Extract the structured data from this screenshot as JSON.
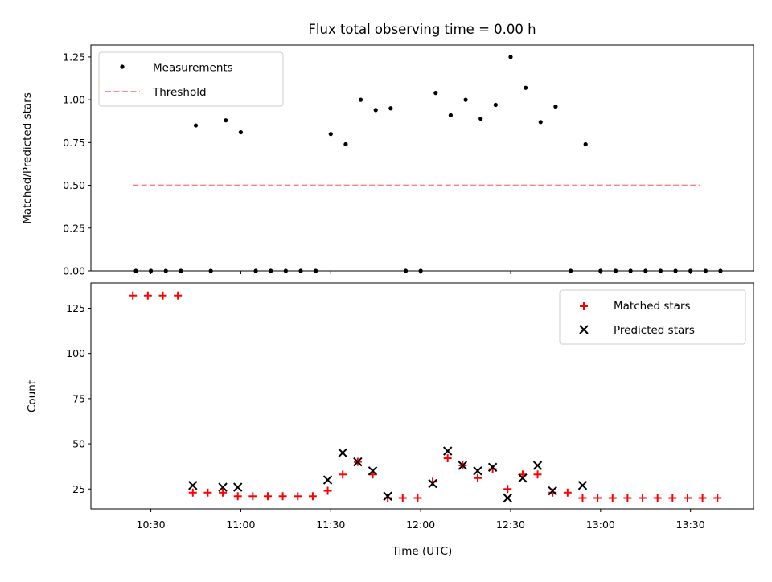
{
  "chart_data": [
    {
      "type": "scatter",
      "title": "Flux total observing time = 0.00 h",
      "xlabel": "",
      "ylabel": "Matched/Predicted stars",
      "ylim": [
        0,
        1.32
      ],
      "yticks": [
        0,
        0.25,
        0.5,
        0.75,
        1.0,
        1.25
      ],
      "ytick_labels": [
        "0.00",
        "0.25",
        "0.50",
        "0.75",
        "1.00",
        "1.25"
      ],
      "legend_position": "top-left",
      "series": [
        {
          "name": "Measurements",
          "marker": "dot",
          "color": "#000000",
          "x": [
            "10:25",
            "10:30",
            "10:35",
            "10:40",
            "10:45",
            "10:50",
            "10:55",
            "11:00",
            "11:05",
            "11:10",
            "11:15",
            "11:20",
            "11:25",
            "11:30",
            "11:35",
            "11:40",
            "11:45",
            "11:50",
            "11:55",
            "12:00",
            "12:05",
            "12:10",
            "12:15",
            "12:20",
            "12:25",
            "12:30",
            "12:35",
            "12:40",
            "12:45",
            "12:50",
            "12:55",
            "13:00",
            "13:05",
            "13:10",
            "13:15",
            "13:20",
            "13:25",
            "13:30",
            "13:35",
            "13:40"
          ],
          "y": [
            0,
            0,
            0,
            0,
            0.85,
            0,
            0.88,
            0.81,
            0,
            0,
            0,
            0,
            0,
            0.8,
            0.74,
            1.0,
            0.94,
            0.95,
            0,
            0,
            1.04,
            0.91,
            1.0,
            0.89,
            0.97,
            1.25,
            1.07,
            0.87,
            0.96,
            0,
            0.74,
            0,
            0,
            0,
            0,
            0,
            0,
            0,
            0,
            0
          ]
        },
        {
          "name": "Threshold",
          "line_style": "dashed",
          "color": "#ff7f7f",
          "x": [
            "10:24",
            "13:33"
          ],
          "y": [
            0.5,
            0.5
          ]
        }
      ]
    },
    {
      "type": "scatter",
      "title": "",
      "xlabel": "Time (UTC)",
      "ylabel": "Count",
      "ylim": [
        14,
        139
      ],
      "yticks": [
        25,
        50,
        75,
        100,
        125
      ],
      "ytick_labels": [
        "25",
        "50",
        "75",
        "100",
        "125"
      ],
      "xlim": [
        "10:10",
        "13:51"
      ],
      "xticks": [
        "10:30",
        "11:00",
        "11:30",
        "12:00",
        "12:30",
        "13:00",
        "13:30"
      ],
      "legend_position": "top-right",
      "series": [
        {
          "name": "Matched stars",
          "marker": "plus",
          "color": "#ff0000",
          "x": [
            "10:24",
            "10:29",
            "10:34",
            "10:39",
            "10:44",
            "10:49",
            "10:54",
            "10:59",
            "11:04",
            "11:09",
            "11:14",
            "11:19",
            "11:24",
            "11:29",
            "11:34",
            "11:39",
            "11:44",
            "11:49",
            "11:54",
            "11:59",
            "12:04",
            "12:09",
            "12:14",
            "12:19",
            "12:24",
            "12:29",
            "12:34",
            "12:39",
            "12:44",
            "12:49",
            "12:54",
            "12:59",
            "13:04",
            "13:09",
            "13:14",
            "13:19",
            "13:24",
            "13:29",
            "13:34",
            "13:39"
          ],
          "y": [
            132,
            132,
            132,
            132,
            23,
            23,
            23,
            21,
            21,
            21,
            21,
            21,
            21,
            24,
            33,
            40,
            33,
            20,
            20,
            20,
            29,
            42,
            38,
            31,
            36,
            25,
            33,
            33,
            23,
            23,
            20,
            20,
            20,
            20,
            20,
            20,
            20,
            20,
            20,
            20
          ]
        },
        {
          "name": "Predicted stars",
          "marker": "x",
          "color": "#000000",
          "x": [
            "10:44",
            "10:54",
            "10:59",
            "11:29",
            "11:34",
            "11:39",
            "11:44",
            "11:49",
            "12:04",
            "12:09",
            "12:14",
            "12:19",
            "12:24",
            "12:29",
            "12:34",
            "12:39",
            "12:44",
            "12:54"
          ],
          "y": [
            27,
            26,
            26,
            30,
            45,
            40,
            35,
            21,
            28,
            46,
            38,
            35,
            37,
            20,
            31,
            38,
            24,
            27
          ]
        }
      ]
    }
  ]
}
